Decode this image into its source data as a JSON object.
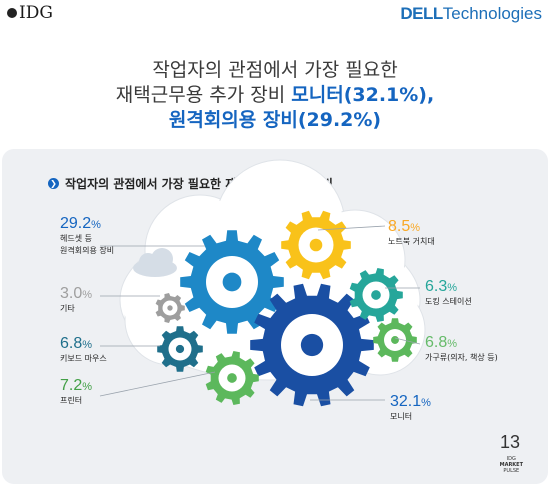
{
  "header": {
    "brand_left": "IDG",
    "brand_right_bold": "DELL",
    "brand_right_rest": "Technologies"
  },
  "headline": {
    "line1": "작업자의 관점에서 가장 필요한",
    "line2_prefix": "재택근무용 추가 장비 ",
    "line2_highlight": "모니터(32.1%),",
    "line3_highlight": "원격회의용 장비(29.2%)"
  },
  "panel": {
    "title": "작업자의 관점에서 가장 필요한 재택근무용 추가 장비",
    "bullet_glyph": "❯"
  },
  "items": [
    {
      "pct": "29.2",
      "label": "헤드셋 등",
      "label2": "원격회의용 장비",
      "color": "#1565c0"
    },
    {
      "pct": "3.0",
      "label": "기타",
      "label2": "",
      "color": "#9e9e9e"
    },
    {
      "pct": "6.8",
      "label": "키보드 마우스",
      "label2": "",
      "color": "#1f6f8b"
    },
    {
      "pct": "7.2",
      "label": "프린터",
      "label2": "",
      "color": "#43a047"
    },
    {
      "pct": "8.5",
      "label": "노트북 거치대",
      "label2": "",
      "color": "#f9a825"
    },
    {
      "pct": "6.3",
      "label": "도킹 스테이션",
      "label2": "",
      "color": "#26a69a"
    },
    {
      "pct": "6.8",
      "label": "가구류(의자, 책상 등)",
      "label2": "",
      "color": "#66bb6a"
    },
    {
      "pct": "32.1",
      "label": "모니터",
      "label2": "",
      "color": "#1565c0"
    }
  ],
  "percent_sign": "%",
  "footer": {
    "page_number": "13",
    "mini_logo_line1": "IDG",
    "mini_logo_line2": "MARKET",
    "mini_logo_line3": "PULSE"
  },
  "colors": {
    "accent": "#1565c0",
    "gear_blue": "#1e88c7",
    "gear_navy": "#1a4fa3",
    "gear_yellow": "#f9c21a",
    "gear_teal": "#26a69a",
    "gear_green": "#5cb85c",
    "gear_darkteal": "#1f6f8b",
    "gear_gray": "#9e9e9e"
  }
}
